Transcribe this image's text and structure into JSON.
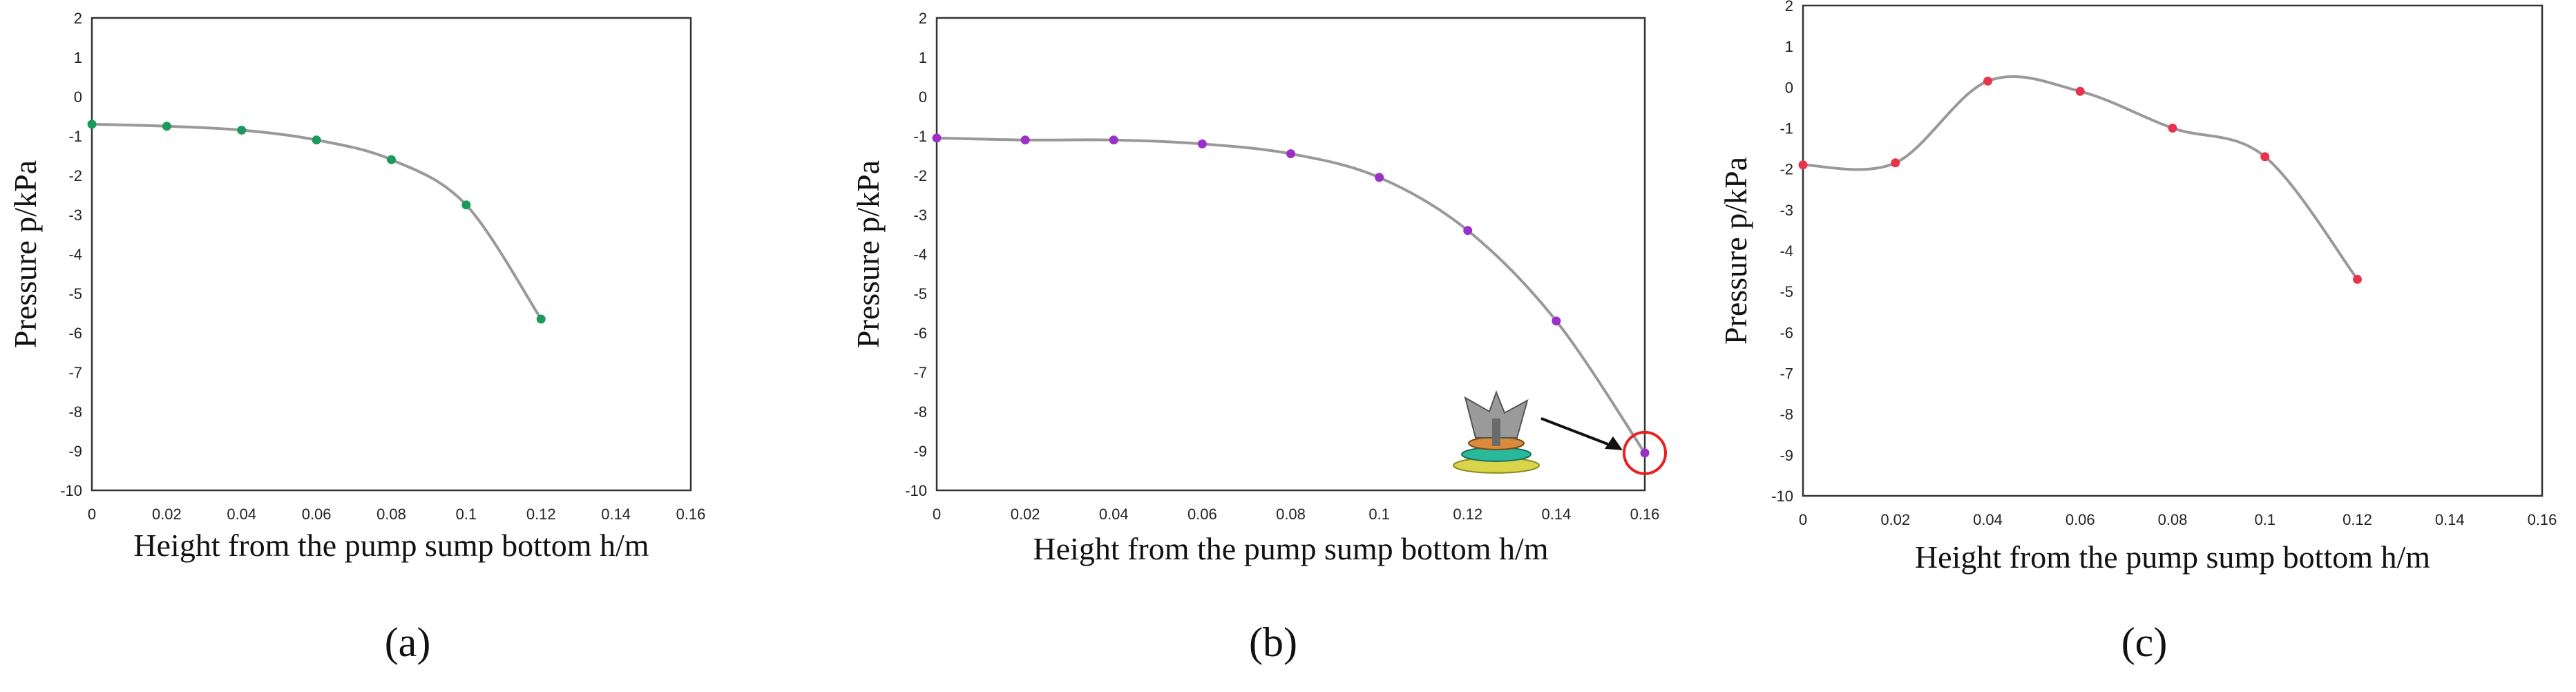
{
  "figure": {
    "panel_labels": [
      "(a)",
      "(b)",
      "(c)"
    ]
  },
  "chart_data": [
    {
      "type": "line",
      "panel": "a",
      "xlabel": "Height from the  pump sump bottom h/m",
      "ylabel": "Pressure p/kPa",
      "xlim": [
        0,
        0.16
      ],
      "ylim": [
        -10,
        2
      ],
      "xticks": [
        "0",
        "0.02",
        "0.04",
        "0.06",
        "0.08",
        "0.1",
        "0.12",
        "0.14",
        "0.16"
      ],
      "yticks": [
        "2",
        "1",
        "0",
        "-1",
        "-2",
        "-3",
        "-4",
        "-5",
        "-6",
        "-7",
        "-8",
        "-9",
        "-10"
      ],
      "grid": false,
      "series": [
        {
          "x": [
            0,
            0.02,
            0.04,
            0.06,
            0.08,
            0.1,
            0.12
          ],
          "y": [
            -0.7,
            -0.75,
            -0.85,
            -1.1,
            -1.6,
            -2.75,
            -5.65
          ],
          "color": "#1a9a5c"
        }
      ]
    },
    {
      "type": "line",
      "panel": "b",
      "xlabel": "Height from the  pump sump bottom h/m",
      "ylabel": "Pressure p/kPa",
      "xlim": [
        0,
        0.16
      ],
      "ylim": [
        -10,
        2
      ],
      "xticks": [
        "0",
        "0.02",
        "0.04",
        "0.06",
        "0.08",
        "0.1",
        "0.12",
        "0.14",
        "0.16"
      ],
      "yticks": [
        "2",
        "1",
        "0",
        "-1",
        "-2",
        "-3",
        "-4",
        "-5",
        "-6",
        "-7",
        "-8",
        "-9",
        "-10"
      ],
      "grid": false,
      "annotation": "impeller illustration with arrow pointing to red-circled point at h = 0.16",
      "series": [
        {
          "x": [
            0,
            0.02,
            0.04,
            0.06,
            0.08,
            0.1,
            0.12,
            0.14,
            0.16
          ],
          "y": [
            -1.05,
            -1.1,
            -1.1,
            -1.2,
            -1.45,
            -2.05,
            -3.4,
            -5.7,
            -9.05
          ],
          "color": "#9b30c8"
        }
      ]
    },
    {
      "type": "line",
      "panel": "c",
      "xlabel": "Height from the  pump sump bottom h/m",
      "ylabel": "Pressure p/kPa",
      "xlim": [
        0,
        0.16
      ],
      "ylim": [
        -10,
        2
      ],
      "xticks": [
        "0",
        "0.02",
        "0.04",
        "0.06",
        "0.08",
        "0.1",
        "0.12",
        "0.14",
        "0.16"
      ],
      "yticks": [
        "2",
        "1",
        "0",
        "-1",
        "-2",
        "-3",
        "-4",
        "-5",
        "-6",
        "-7",
        "-8",
        "-9",
        "-10"
      ],
      "grid": false,
      "series": [
        {
          "x": [
            0,
            0.02,
            0.04,
            0.06,
            0.08,
            0.1,
            0.12
          ],
          "y": [
            -1.9,
            -1.85,
            0.15,
            -0.1,
            -1.0,
            -1.7,
            -4.7
          ],
          "color": "#e8334a"
        }
      ]
    }
  ]
}
